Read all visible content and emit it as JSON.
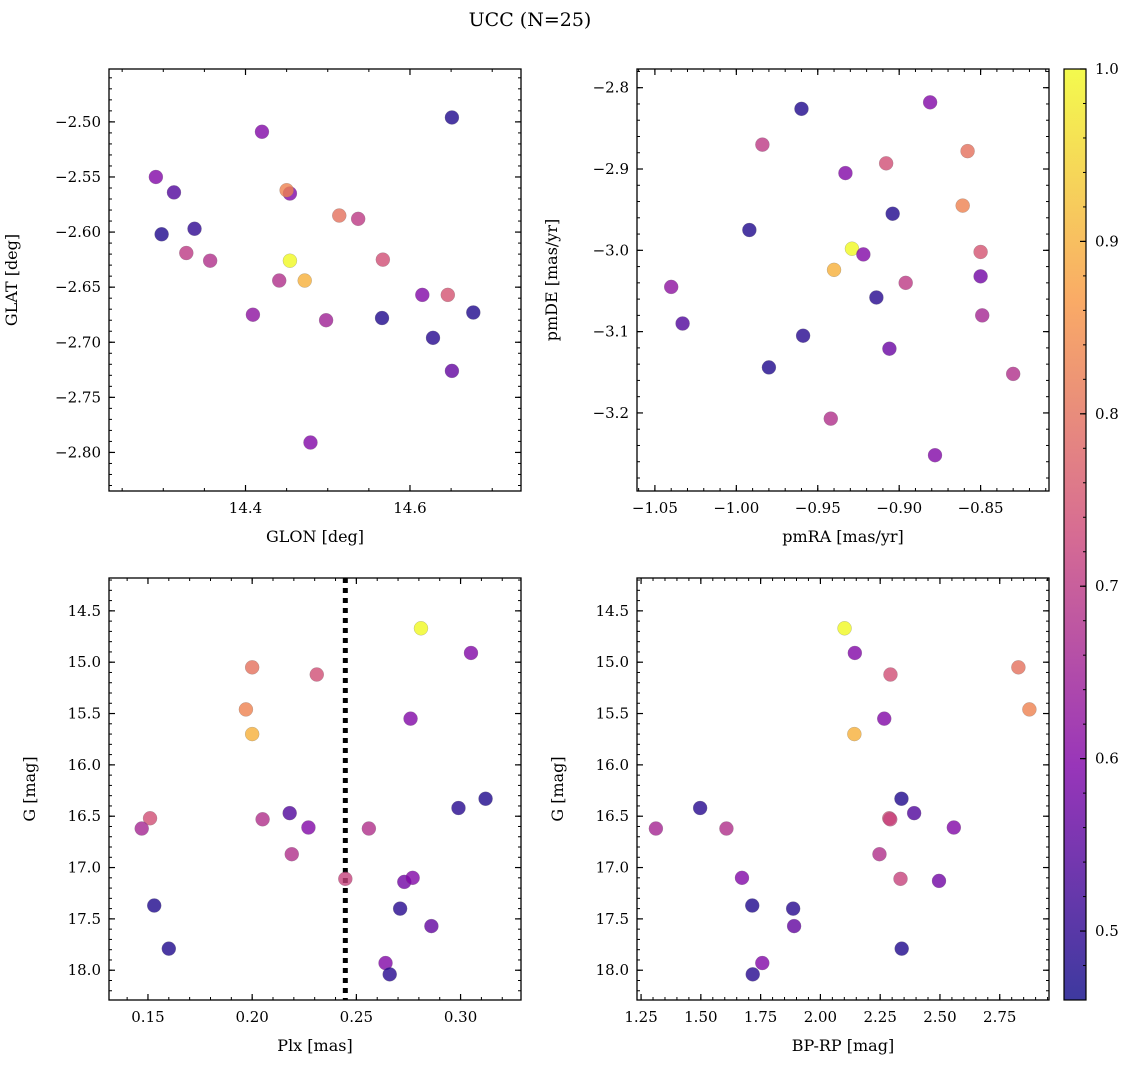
{
  "title": "UCC (N=25)",
  "colorbar": {
    "vmin": 0.46,
    "vmax": 1.0,
    "ticks": [
      0.5,
      0.6,
      0.7,
      0.8,
      0.9,
      1.0
    ],
    "minor_step": 0.02,
    "decimals": 1,
    "colormap": "plasma",
    "colormap_stops": [
      "#0d0887",
      "#7e03a8",
      "#cc4778",
      "#f89540",
      "#f0f921"
    ]
  },
  "chart_data": [
    {
      "type": "scatter",
      "xlabel": "GLON [deg]",
      "ylabel": "GLAT [deg]",
      "xlim": [
        14.234,
        14.735
      ],
      "ylim": [
        -2.835,
        -2.452
      ],
      "xticks": [
        14.4,
        14.6
      ],
      "xminor": 0.05,
      "xdec": 1,
      "yticks": [
        -2.8,
        -2.75,
        -2.7,
        -2.65,
        -2.6,
        -2.55,
        -2.5
      ],
      "yminor": 0.01,
      "ydec": 2,
      "points": [
        [
          14.651,
          -2.496,
          0.48
        ],
        [
          14.42,
          -2.509,
          0.6
        ],
        [
          14.291,
          -2.55,
          0.6
        ],
        [
          14.313,
          -2.564,
          0.54
        ],
        [
          14.454,
          -2.565,
          0.6
        ],
        [
          14.45,
          -2.562,
          0.83
        ],
        [
          14.298,
          -2.602,
          0.48
        ],
        [
          14.338,
          -2.597,
          0.5
        ],
        [
          14.514,
          -2.585,
          0.8
        ],
        [
          14.537,
          -2.588,
          0.7
        ],
        [
          14.328,
          -2.619,
          0.7
        ],
        [
          14.357,
          -2.626,
          0.68
        ],
        [
          14.454,
          -2.626,
          1.0
        ],
        [
          14.441,
          -2.644,
          0.68
        ],
        [
          14.472,
          -2.644,
          0.9
        ],
        [
          14.567,
          -2.625,
          0.74
        ],
        [
          14.615,
          -2.657,
          0.6
        ],
        [
          14.646,
          -2.657,
          0.75
        ],
        [
          14.677,
          -2.673,
          0.48
        ],
        [
          14.409,
          -2.675,
          0.62
        ],
        [
          14.498,
          -2.68,
          0.65
        ],
        [
          14.566,
          -2.678,
          0.48
        ],
        [
          14.628,
          -2.696,
          0.49
        ],
        [
          14.651,
          -2.726,
          0.56
        ],
        [
          14.479,
          -2.791,
          0.6
        ]
      ]
    },
    {
      "type": "scatter",
      "xlabel": "pmRA [mas/yr]",
      "ylabel": "pmDE [mas/yr]",
      "xlim": [
        -1.061,
        -0.808
      ],
      "ylim": [
        -3.296,
        -2.777
      ],
      "xticks": [
        -1.05,
        -1.0,
        -0.95,
        -0.9,
        -0.85
      ],
      "xminor": 0.01,
      "xdec": 2,
      "yticks": [
        -3.2,
        -3.1,
        -3.0,
        -2.9,
        -2.8
      ],
      "yminor": 0.02,
      "ydec": 1,
      "points": [
        [
          -0.96,
          -2.826,
          0.48
        ],
        [
          -0.881,
          -2.818,
          0.6
        ],
        [
          -0.984,
          -2.87,
          0.7
        ],
        [
          -0.858,
          -2.878,
          0.8
        ],
        [
          -0.908,
          -2.893,
          0.74
        ],
        [
          -0.933,
          -2.905,
          0.6
        ],
        [
          -0.861,
          -2.945,
          0.83
        ],
        [
          -0.904,
          -2.955,
          0.48
        ],
        [
          -0.992,
          -2.975,
          0.48
        ],
        [
          -0.929,
          -2.998,
          1.0
        ],
        [
          -0.922,
          -3.005,
          0.6
        ],
        [
          -0.94,
          -3.024,
          0.9
        ],
        [
          -0.85,
          -3.002,
          0.75
        ],
        [
          -0.85,
          -3.032,
          0.58
        ],
        [
          -1.04,
          -3.045,
          0.62
        ],
        [
          -0.896,
          -3.04,
          0.7
        ],
        [
          -0.914,
          -3.058,
          0.49
        ],
        [
          -0.849,
          -3.08,
          0.66
        ],
        [
          -1.033,
          -3.09,
          0.54
        ],
        [
          -0.959,
          -3.105,
          0.49
        ],
        [
          -0.906,
          -3.121,
          0.57
        ],
        [
          -0.98,
          -3.144,
          0.48
        ],
        [
          -0.83,
          -3.152,
          0.68
        ],
        [
          -0.942,
          -3.207,
          0.68
        ],
        [
          -0.878,
          -3.252,
          0.6
        ]
      ]
    },
    {
      "type": "scatter",
      "xlabel": "Plx [mas]",
      "ylabel": "G [mag]",
      "xlim": [
        0.1313,
        0.329
      ],
      "ylim": [
        18.29,
        14.18
      ],
      "xticks": [
        0.15,
        0.2,
        0.25,
        0.3
      ],
      "xminor": 0.01,
      "xdec": 2,
      "yticks": [
        14.5,
        15.0,
        15.5,
        16.0,
        16.5,
        17.0,
        17.5,
        18.0
      ],
      "yminor": 0.1,
      "ydec": 1,
      "vline": 0.2447,
      "points": [
        [
          0.281,
          14.67,
          1.0
        ],
        [
          0.305,
          14.91,
          0.6
        ],
        [
          0.2,
          15.05,
          0.8
        ],
        [
          0.231,
          15.12,
          0.74
        ],
        [
          0.197,
          15.46,
          0.83
        ],
        [
          0.276,
          15.55,
          0.6
        ],
        [
          0.2,
          15.7,
          0.9
        ],
        [
          0.312,
          16.33,
          0.48
        ],
        [
          0.299,
          16.42,
          0.49
        ],
        [
          0.151,
          16.52,
          0.74
        ],
        [
          0.147,
          16.62,
          0.66
        ],
        [
          0.205,
          16.53,
          0.68
        ],
        [
          0.218,
          16.47,
          0.54
        ],
        [
          0.227,
          16.61,
          0.6
        ],
        [
          0.256,
          16.62,
          0.68
        ],
        [
          0.219,
          16.87,
          0.68
        ],
        [
          0.2447,
          17.11,
          0.72
        ],
        [
          0.273,
          17.14,
          0.58
        ],
        [
          0.277,
          17.1,
          0.6
        ],
        [
          0.153,
          17.37,
          0.48
        ],
        [
          0.271,
          17.4,
          0.49
        ],
        [
          0.286,
          17.57,
          0.56
        ],
        [
          0.16,
          17.79,
          0.48
        ],
        [
          0.264,
          17.93,
          0.6
        ],
        [
          0.266,
          18.04,
          0.49
        ]
      ]
    },
    {
      "type": "scatter",
      "xlabel": "BP-RP [mag]",
      "ylabel": "G [mag]",
      "xlim": [
        1.233,
        2.956
      ],
      "ylim": [
        18.29,
        14.18
      ],
      "xticks": [
        1.25,
        1.5,
        1.75,
        2.0,
        2.25,
        2.5,
        2.75
      ],
      "xminor": 0.05,
      "xdec": 2,
      "yticks": [
        14.5,
        15.0,
        15.5,
        16.0,
        16.5,
        17.0,
        17.5,
        18.0
      ],
      "yminor": 0.1,
      "ydec": 1,
      "points": [
        [
          2.101,
          14.67,
          1.0
        ],
        [
          2.144,
          14.91,
          0.6
        ],
        [
          2.828,
          15.05,
          0.8
        ],
        [
          2.293,
          15.12,
          0.74
        ],
        [
          2.874,
          15.46,
          0.83
        ],
        [
          2.267,
          15.55,
          0.6
        ],
        [
          2.142,
          15.7,
          0.9
        ],
        [
          2.339,
          16.33,
          0.48
        ],
        [
          1.497,
          16.42,
          0.49
        ],
        [
          2.288,
          16.52,
          0.74
        ],
        [
          2.292,
          16.53,
          0.72
        ],
        [
          1.312,
          16.62,
          0.66
        ],
        [
          1.607,
          16.62,
          0.68
        ],
        [
          2.392,
          16.47,
          0.54
        ],
        [
          2.558,
          16.61,
          0.6
        ],
        [
          2.247,
          16.87,
          0.68
        ],
        [
          2.335,
          17.11,
          0.72
        ],
        [
          2.496,
          17.13,
          0.58
        ],
        [
          1.672,
          17.1,
          0.6
        ],
        [
          1.715,
          17.37,
          0.48
        ],
        [
          1.886,
          17.4,
          0.49
        ],
        [
          1.89,
          17.57,
          0.56
        ],
        [
          2.34,
          17.79,
          0.48
        ],
        [
          1.757,
          17.93,
          0.6
        ],
        [
          1.717,
          18.04,
          0.49
        ]
      ]
    }
  ]
}
